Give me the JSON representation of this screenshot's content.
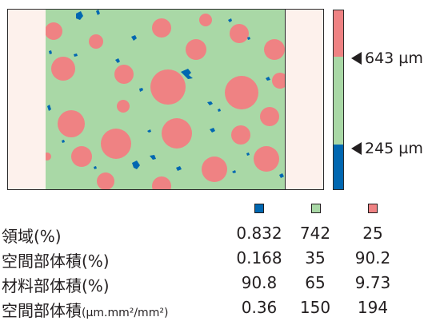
{
  "colors": {
    "blue": "#0067b1",
    "green": "#a9d8a6",
    "pink": "#ef8283",
    "side_fill": "#fdf1ec"
  },
  "scale": {
    "upper_marker": "643 µm",
    "lower_marker": "245 µm"
  },
  "legend": {
    "swatches": [
      "blue",
      "green",
      "pink"
    ]
  },
  "table": {
    "rows": [
      {
        "label": "領域",
        "paren": "(%)",
        "values": [
          "0.832",
          "742",
          "25"
        ]
      },
      {
        "label": "空間部体積",
        "paren": "(%)",
        "values": [
          "0.168",
          "35",
          "90.2"
        ]
      },
      {
        "label": "材料部体積",
        "paren": "(%)",
        "values": [
          "90.8",
          "65",
          "9.73"
        ]
      },
      {
        "label": "空間部体積",
        "paren": "(μm.mm²/mm²)",
        "values": [
          "0.36",
          "150",
          "194"
        ]
      }
    ]
  }
}
